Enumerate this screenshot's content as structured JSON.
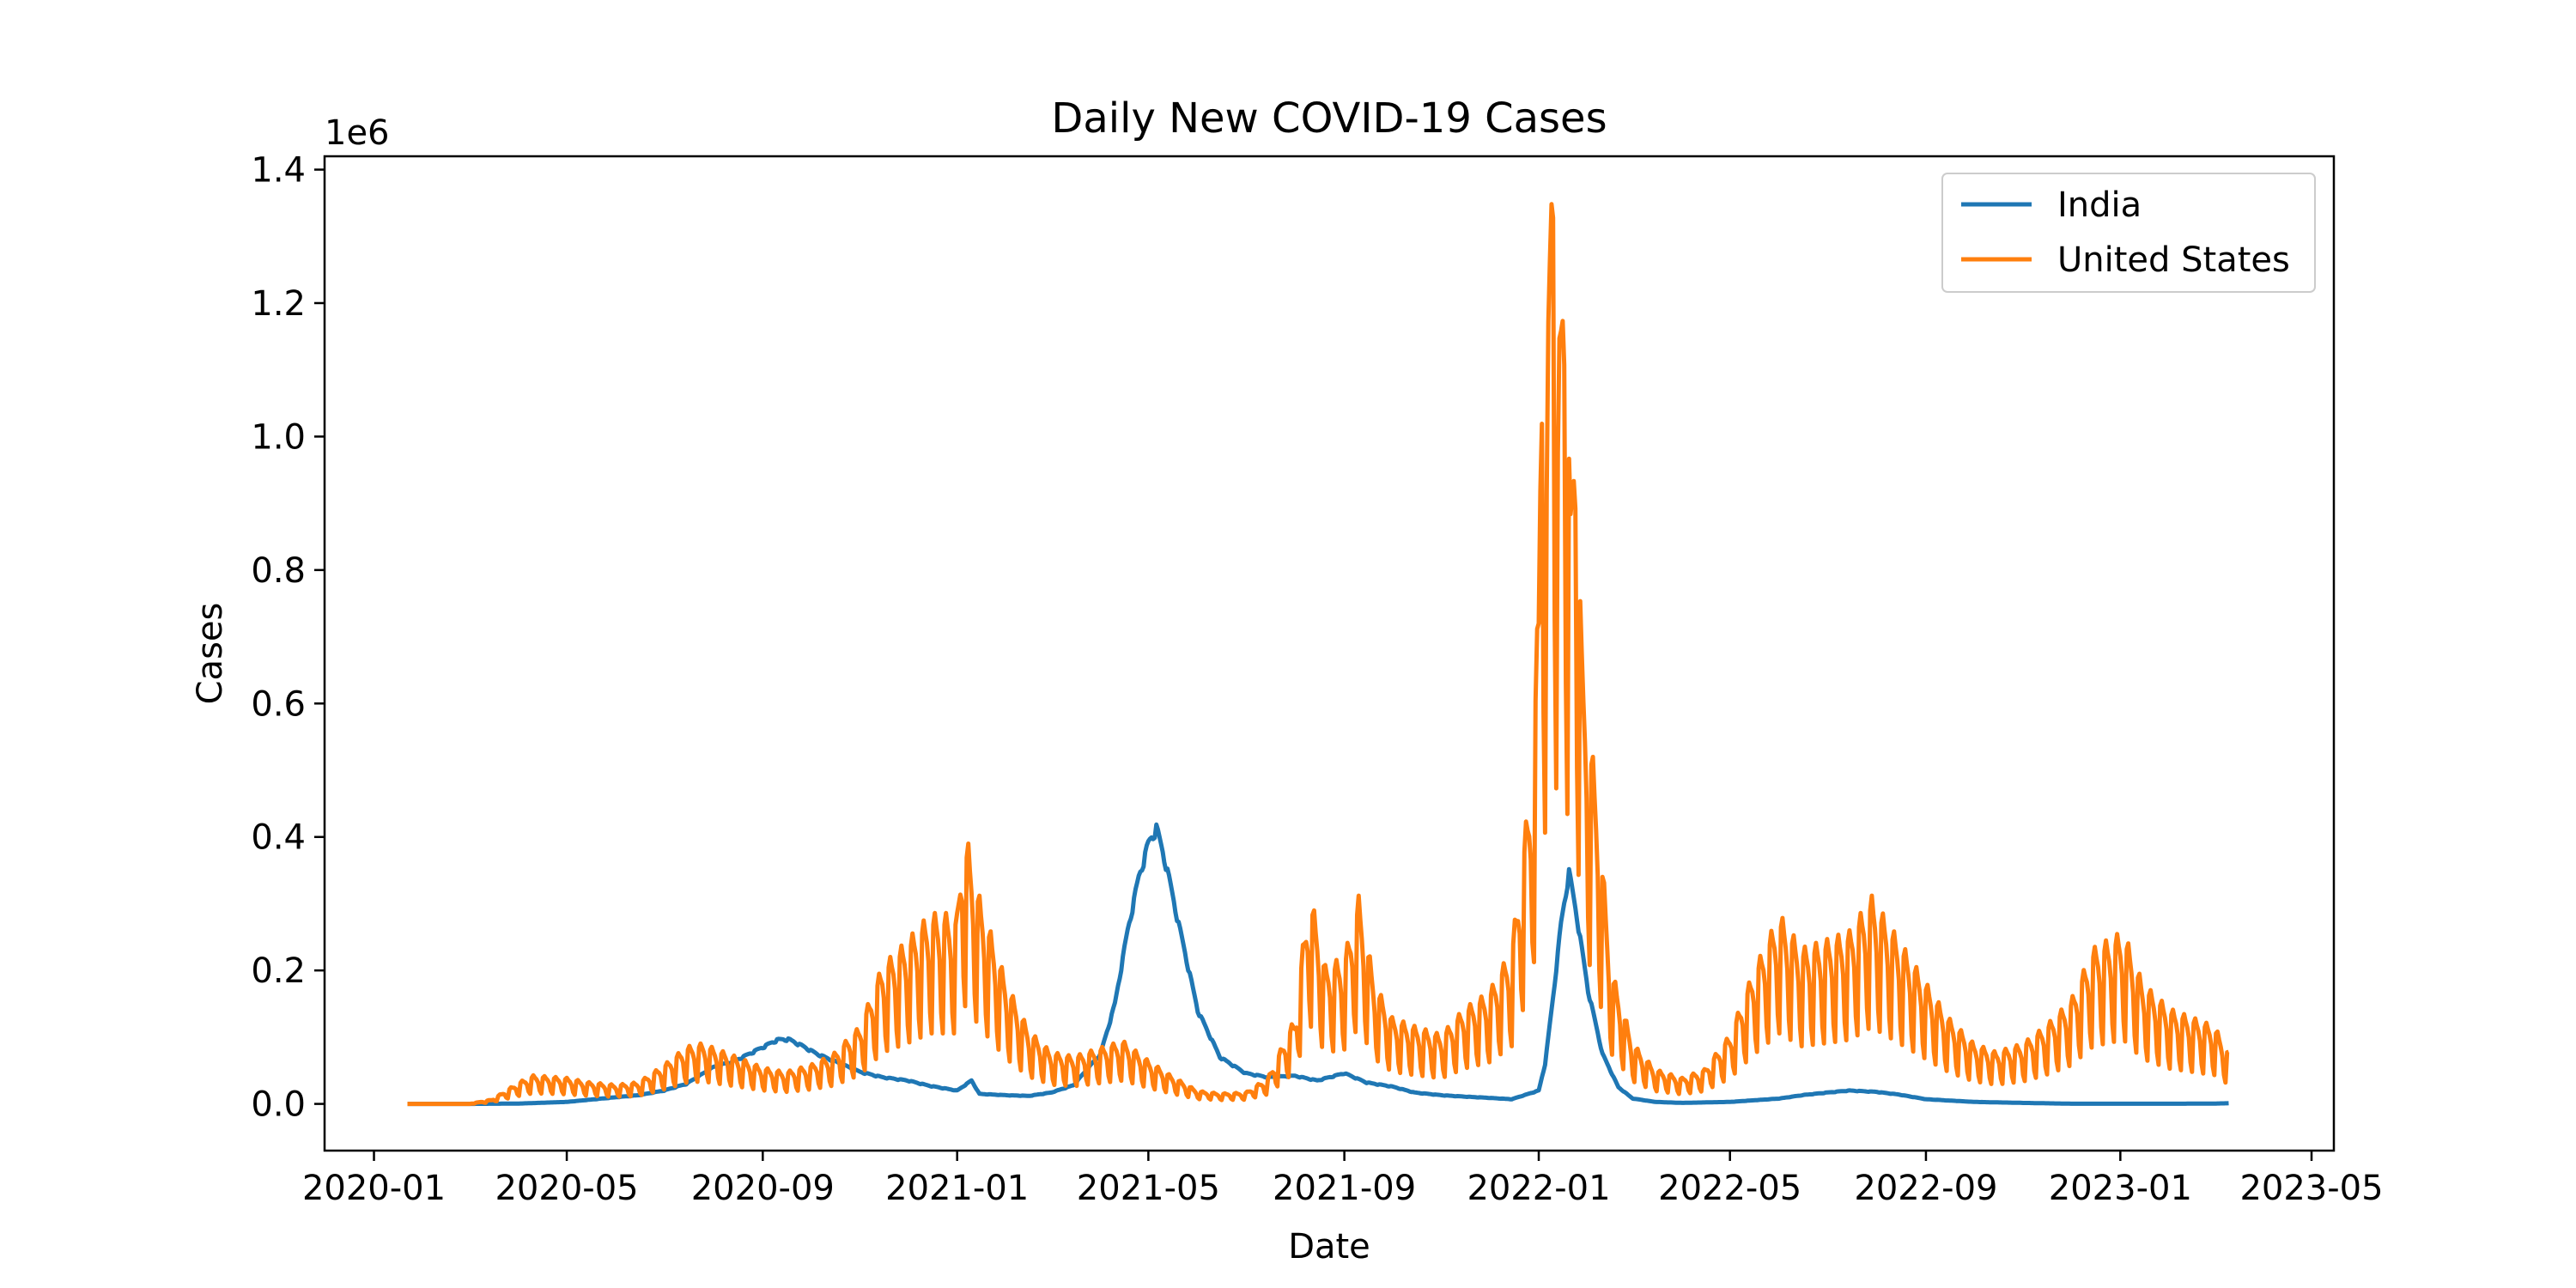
{
  "chart_data": {
    "type": "line",
    "title": "Daily New COVID-19 Cases",
    "xlabel": "Date",
    "ylabel": "Cases",
    "y_offset_label": "1e6",
    "y_multiplier": 1000000,
    "xlim": [
      "2019-12-01",
      "2023-05-15"
    ],
    "ylim": [
      -0.07,
      1.42
    ],
    "x_ticks": [
      "2020-01",
      "2020-05",
      "2020-09",
      "2021-01",
      "2021-05",
      "2021-09",
      "2022-01",
      "2022-05",
      "2022-09",
      "2023-01",
      "2023-05"
    ],
    "y_ticks": [
      "0.0",
      "0.2",
      "0.4",
      "0.6",
      "0.8",
      "1.0",
      "1.2",
      "1.4"
    ],
    "grid": false,
    "legend": "top-right",
    "series": [
      {
        "name": "India",
        "color": "#1f77b4",
        "points": [
          [
            "2020-01-22",
            0.0
          ],
          [
            "2020-03-01",
            0.0
          ],
          [
            "2020-04-01",
            0.0005
          ],
          [
            "2020-05-01",
            0.003
          ],
          [
            "2020-06-01",
            0.01
          ],
          [
            "2020-06-15",
            0.013
          ],
          [
            "2020-07-01",
            0.02
          ],
          [
            "2020-07-15",
            0.03
          ],
          [
            "2020-08-01",
            0.055
          ],
          [
            "2020-08-15",
            0.065
          ],
          [
            "2020-09-01",
            0.085
          ],
          [
            "2020-09-10",
            0.096
          ],
          [
            "2020-09-17",
            0.097
          ],
          [
            "2020-09-25",
            0.088
          ],
          [
            "2020-10-05",
            0.075
          ],
          [
            "2020-10-15",
            0.065
          ],
          [
            "2020-11-01",
            0.048
          ],
          [
            "2020-11-15",
            0.04
          ],
          [
            "2020-12-01",
            0.035
          ],
          [
            "2020-12-15",
            0.027
          ],
          [
            "2021-01-01",
            0.02
          ],
          [
            "2021-01-10",
            0.035
          ],
          [
            "2021-01-15",
            0.015
          ],
          [
            "2021-02-01",
            0.013
          ],
          [
            "2021-02-15",
            0.012
          ],
          [
            "2021-03-01",
            0.017
          ],
          [
            "2021-03-15",
            0.028
          ],
          [
            "2021-04-01",
            0.075
          ],
          [
            "2021-04-10",
            0.15
          ],
          [
            "2021-04-18",
            0.26
          ],
          [
            "2021-04-25",
            0.34
          ],
          [
            "2021-05-01",
            0.39
          ],
          [
            "2021-05-06",
            0.414
          ],
          [
            "2021-05-12",
            0.36
          ],
          [
            "2021-05-20",
            0.27
          ],
          [
            "2021-06-01",
            0.14
          ],
          [
            "2021-06-15",
            0.07
          ],
          [
            "2021-07-01",
            0.046
          ],
          [
            "2021-07-15",
            0.04
          ],
          [
            "2021-08-01",
            0.042
          ],
          [
            "2021-08-15",
            0.035
          ],
          [
            "2021-09-01",
            0.046
          ],
          [
            "2021-09-15",
            0.032
          ],
          [
            "2021-10-01",
            0.026
          ],
          [
            "2021-10-15",
            0.017
          ],
          [
            "2021-11-01",
            0.013
          ],
          [
            "2021-11-15",
            0.011
          ],
          [
            "2021-12-01",
            0.009
          ],
          [
            "2021-12-15",
            0.007
          ],
          [
            "2022-01-01",
            0.02
          ],
          [
            "2022-01-05",
            0.06
          ],
          [
            "2022-01-10",
            0.16
          ],
          [
            "2022-01-15",
            0.27
          ],
          [
            "2022-01-20",
            0.348
          ],
          [
            "2022-01-25",
            0.28
          ],
          [
            "2022-02-01",
            0.17
          ],
          [
            "2022-02-10",
            0.075
          ],
          [
            "2022-02-20",
            0.025
          ],
          [
            "2022-03-01",
            0.008
          ],
          [
            "2022-03-15",
            0.003
          ],
          [
            "2022-04-01",
            0.0015
          ],
          [
            "2022-05-01",
            0.003
          ],
          [
            "2022-06-01",
            0.008
          ],
          [
            "2022-06-15",
            0.013
          ],
          [
            "2022-07-01",
            0.017
          ],
          [
            "2022-07-15",
            0.02
          ],
          [
            "2022-08-01",
            0.018
          ],
          [
            "2022-08-15",
            0.014
          ],
          [
            "2022-09-01",
            0.007
          ],
          [
            "2022-10-01",
            0.003
          ],
          [
            "2022-11-01",
            0.0015
          ],
          [
            "2022-12-01",
            0.0003
          ],
          [
            "2023-01-01",
            0.0002
          ],
          [
            "2023-02-01",
            0.0002
          ],
          [
            "2023-03-01",
            0.0005
          ],
          [
            "2023-03-10",
            0.001
          ]
        ]
      },
      {
        "name": "United States",
        "color": "#ff7f0e",
        "points": [
          [
            "2020-01-22",
            0.0
          ],
          [
            "2020-03-01",
            0.0
          ],
          [
            "2020-03-15",
            0.005
          ],
          [
            "2020-04-01",
            0.025
          ],
          [
            "2020-04-10",
            0.033
          ],
          [
            "2020-05-01",
            0.03
          ],
          [
            "2020-05-15",
            0.025
          ],
          [
            "2020-06-01",
            0.022
          ],
          [
            "2020-06-15",
            0.025
          ],
          [
            "2020-07-01",
            0.045
          ],
          [
            "2020-07-15",
            0.066
          ],
          [
            "2020-07-25",
            0.07
          ],
          [
            "2020-08-15",
            0.055
          ],
          [
            "2020-09-01",
            0.042
          ],
          [
            "2020-09-15",
            0.037
          ],
          [
            "2020-10-01",
            0.045
          ],
          [
            "2020-10-15",
            0.057
          ],
          [
            "2020-11-01",
            0.09
          ],
          [
            "2020-11-15",
            0.16
          ],
          [
            "2020-12-01",
            0.19
          ],
          [
            "2020-12-15",
            0.22
          ],
          [
            "2021-01-01",
            0.22
          ],
          [
            "2021-01-04",
            0.31
          ],
          [
            "2021-01-08",
            0.3
          ],
          [
            "2021-01-15",
            0.24
          ],
          [
            "2021-02-01",
            0.14
          ],
          [
            "2021-02-15",
            0.085
          ],
          [
            "2021-03-01",
            0.06
          ],
          [
            "2021-03-15",
            0.055
          ],
          [
            "2021-04-01",
            0.065
          ],
          [
            "2021-04-15",
            0.073
          ],
          [
            "2021-05-01",
            0.05
          ],
          [
            "2021-05-15",
            0.033
          ],
          [
            "2021-06-01",
            0.015
          ],
          [
            "2021-06-15",
            0.012
          ],
          [
            "2021-07-01",
            0.013
          ],
          [
            "2021-07-15",
            0.03
          ],
          [
            "2021-08-01",
            0.1
          ],
          [
            "2021-08-10",
            0.25
          ],
          [
            "2021-08-20",
            0.16
          ],
          [
            "2021-09-01",
            0.17
          ],
          [
            "2021-09-10",
            0.24
          ],
          [
            "2021-09-20",
            0.14
          ],
          [
            "2021-10-01",
            0.1
          ],
          [
            "2021-10-15",
            0.09
          ],
          [
            "2021-11-01",
            0.08
          ],
          [
            "2021-11-15",
            0.11
          ],
          [
            "2021-12-01",
            0.13
          ],
          [
            "2021-12-15",
            0.18
          ],
          [
            "2021-12-28",
            0.39
          ],
          [
            "2022-01-01",
            0.6
          ],
          [
            "2022-01-03",
            1.04
          ],
          [
            "2022-01-06",
            0.75
          ],
          [
            "2022-01-10",
            1.355
          ],
          [
            "2022-01-13",
            0.8
          ],
          [
            "2022-01-17",
            1.13
          ],
          [
            "2022-01-21",
            0.68
          ],
          [
            "2022-01-24",
            0.91
          ],
          [
            "2022-01-28",
            0.52
          ],
          [
            "2022-02-01",
            0.45
          ],
          [
            "2022-02-07",
            0.35
          ],
          [
            "2022-02-15",
            0.16
          ],
          [
            "2022-03-01",
            0.07
          ],
          [
            "2022-03-15",
            0.04
          ],
          [
            "2022-04-01",
            0.03
          ],
          [
            "2022-04-15",
            0.04
          ],
          [
            "2022-05-01",
            0.08
          ],
          [
            "2022-05-15",
            0.15
          ],
          [
            "2022-06-01",
            0.22
          ],
          [
            "2022-06-15",
            0.18
          ],
          [
            "2022-07-01",
            0.19
          ],
          [
            "2022-07-15",
            0.2
          ],
          [
            "2022-07-29",
            0.24
          ],
          [
            "2022-08-15",
            0.19
          ],
          [
            "2022-09-01",
            0.14
          ],
          [
            "2022-09-15",
            0.1
          ],
          [
            "2022-10-01",
            0.07
          ],
          [
            "2022-10-15",
            0.06
          ],
          [
            "2022-11-01",
            0.07
          ],
          [
            "2022-11-15",
            0.09
          ],
          [
            "2022-12-01",
            0.12
          ],
          [
            "2022-12-15",
            0.18
          ],
          [
            "2023-01-03",
            0.2
          ],
          [
            "2023-01-15",
            0.14
          ],
          [
            "2023-02-01",
            0.11
          ],
          [
            "2023-02-15",
            0.1
          ],
          [
            "2023-03-01",
            0.09
          ],
          [
            "2023-03-10",
            0.06
          ]
        ]
      }
    ]
  }
}
